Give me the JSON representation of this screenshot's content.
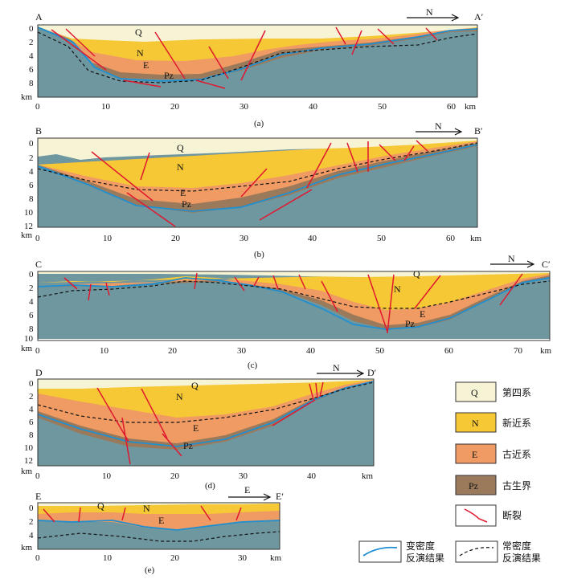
{
  "colors": {
    "Q": "#f7f4d6",
    "N": "#f6c835",
    "E": "#ef9b63",
    "Pz": "#9b7a5c",
    "basement": "#6f97a0",
    "fault": "#e0182f",
    "var_density": "#1f8fd0",
    "const_density": "#111111"
  },
  "sections": [
    {
      "id": "a",
      "caption": "(a)",
      "start": "A",
      "end": "A′",
      "north": "N",
      "unit_labels": {
        "Q": "Q",
        "N": "N",
        "E": "E",
        "Pz": "Pz"
      },
      "x_ticks": [
        "0",
        "10",
        "20",
        "30",
        "40",
        "50",
        "60"
      ],
      "y_ticks": [
        "0",
        "2",
        "4",
        "6",
        "8"
      ],
      "x_unit": "km",
      "y_unit": "km"
    },
    {
      "id": "b",
      "caption": "(b)",
      "start": "B",
      "end": "B′",
      "north": "N",
      "unit_labels": {
        "Q": "Q",
        "N": "N",
        "E": "E",
        "Pz": "Pz"
      },
      "x_ticks": [
        "0",
        "10",
        "20",
        "30",
        "40",
        "50",
        "60"
      ],
      "y_ticks": [
        "0",
        "2",
        "4",
        "6",
        "8",
        "10",
        "12"
      ],
      "x_unit": "km",
      "y_unit": "km"
    },
    {
      "id": "c",
      "caption": "(c)",
      "start": "C",
      "end": "C′",
      "north": "N",
      "unit_labels": {
        "Q": "Q",
        "N": "N",
        "E": "E",
        "Pz": "Pz"
      },
      "x_ticks": [
        "0",
        "10",
        "20",
        "30",
        "40",
        "50",
        "60",
        "70"
      ],
      "y_ticks": [
        "0",
        "2",
        "4",
        "6",
        "8",
        "10"
      ],
      "x_unit": "km",
      "y_unit": "km"
    },
    {
      "id": "d",
      "caption": "(d)",
      "start": "D",
      "end": "D′",
      "north": "N",
      "unit_labels": {
        "Q": "Q",
        "N": "N",
        "E": "E",
        "Pz": "Pz"
      },
      "x_ticks": [
        "0",
        "10",
        "20",
        "30",
        "40"
      ],
      "y_ticks": [
        "0",
        "2",
        "4",
        "6",
        "8",
        "10",
        "12"
      ],
      "x_unit": "km",
      "y_unit": "km"
    },
    {
      "id": "e",
      "caption": "(e)",
      "start": "E",
      "end": "E′",
      "north": "E",
      "unit_labels": {
        "Q": "Q",
        "N": "N",
        "E": "E"
      },
      "x_ticks": [
        "0",
        "10",
        "20",
        "30"
      ],
      "y_ticks": [
        "0",
        "2",
        "4"
      ],
      "x_unit": "km",
      "y_unit": "km"
    }
  ],
  "legend": {
    "Q": {
      "symbol": "Q",
      "label": "第四系"
    },
    "N": {
      "symbol": "N",
      "label": "新近系"
    },
    "E": {
      "symbol": "E",
      "label": "古近系"
    },
    "Pz": {
      "symbol": "Pz",
      "label": "古生界"
    },
    "fault": {
      "label": "断裂"
    },
    "var_density": {
      "label_line1": "变密度",
      "label_line2": "反演结果"
    },
    "const_density": {
      "label_line1": "常密度",
      "label_line2": "反演结果"
    }
  }
}
